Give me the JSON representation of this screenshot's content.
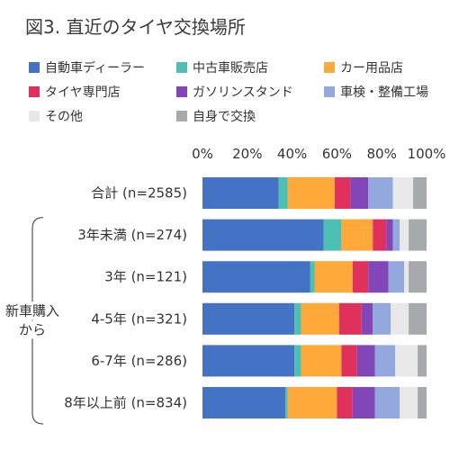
{
  "title": "図3. 直近のタイヤ交換場所",
  "chart_data": {
    "type": "bar",
    "orientation": "horizontal",
    "stacked": true,
    "xlim": [
      0,
      100
    ],
    "xticks": [
      "0%",
      "20%",
      "40%",
      "60%",
      "80%",
      "100%"
    ],
    "grid": false,
    "legend_position": "top",
    "group_label": "新車購入から",
    "group_label_lines": [
      "新車購入",
      "から"
    ],
    "categories": [
      "合計 (n=2585)",
      "3年未満 (n=274)",
      "3年 (n=121)",
      "4-5年 (n=321)",
      "6-7年 (n=286)",
      "8年以上前 (n=834)"
    ],
    "series": [
      {
        "name": "自動車ディーラー",
        "color": "#4472c4",
        "values": [
          34,
          54,
          48,
          41,
          41,
          37
        ]
      },
      {
        "name": "中古車販売店",
        "color": "#4dbfb3",
        "values": [
          4,
          8,
          2,
          3,
          3,
          1
        ]
      },
      {
        "name": "カー用品店",
        "color": "#ffa93a",
        "values": [
          21,
          14,
          17,
          17,
          18,
          22
        ]
      },
      {
        "name": "タイヤ専門店",
        "color": "#e0315c",
        "values": [
          7,
          6,
          7,
          10,
          7,
          7
        ]
      },
      {
        "name": "ガソリンスタンド",
        "color": "#8346b8",
        "values": [
          8,
          3,
          9,
          5,
          8,
          10
        ]
      },
      {
        "name": "車検・整備工場",
        "color": "#93a8dc",
        "values": [
          11,
          3,
          7,
          8,
          9,
          11
        ]
      },
      {
        "name": "その他",
        "color": "#e8e8e8",
        "values": [
          9,
          4,
          2,
          8,
          10,
          8
        ]
      },
      {
        "name": "自身で交換",
        "color": "#a6aaad",
        "values": [
          6,
          8,
          8,
          8,
          4,
          4
        ]
      }
    ]
  }
}
